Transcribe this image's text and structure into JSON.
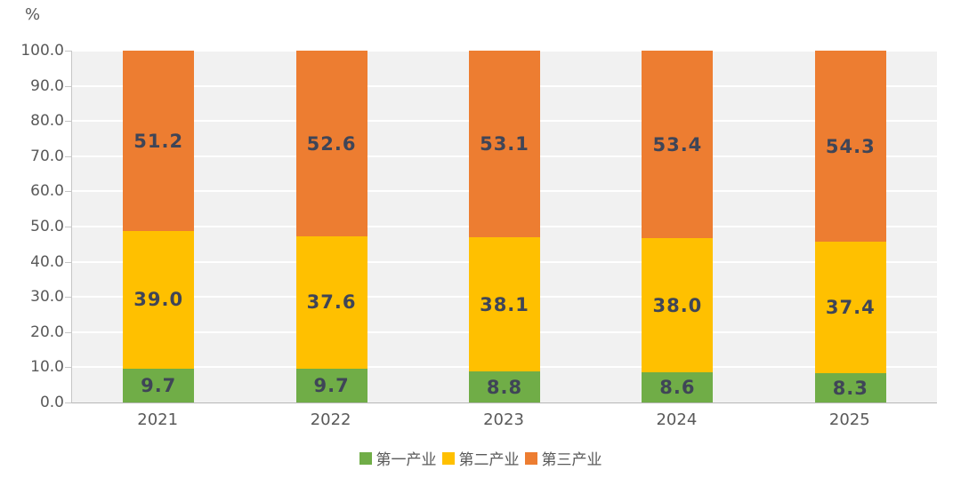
{
  "unit_label": "%",
  "axis": {
    "tick_label_color": "#595959",
    "axis_line_color": "#c6c6c6",
    "plot_background": "#f1f1f1",
    "gridline_color": "#ffffff",
    "value_label_color": "#3f4557"
  },
  "chart_data": {
    "type": "bar",
    "subtype": "stacked-percentage",
    "title": "",
    "xlabel": "",
    "ylabel": "%",
    "categories": [
      "2021",
      "2022",
      "2023",
      "2024",
      "2025"
    ],
    "series": [
      {
        "name": "第一产业",
        "color": "#70ad47",
        "values": [
          9.7,
          9.7,
          8.8,
          8.6,
          8.3
        ]
      },
      {
        "name": "第二产业",
        "color": "#ffc000",
        "values": [
          39.0,
          37.6,
          38.1,
          38.0,
          37.4
        ]
      },
      {
        "name": "第三产业",
        "color": "#ed7d31",
        "values": [
          51.2,
          52.6,
          53.1,
          53.4,
          54.3
        ]
      }
    ],
    "ylim": [
      0,
      100
    ],
    "ytick_step": 10,
    "ytick_labels": [
      "0.0",
      "10.0",
      "20.0",
      "30.0",
      "40.0",
      "50.0",
      "60.0",
      "70.0",
      "80.0",
      "90.0",
      "100.0"
    ],
    "grid": true,
    "legend_position": "bottom"
  }
}
